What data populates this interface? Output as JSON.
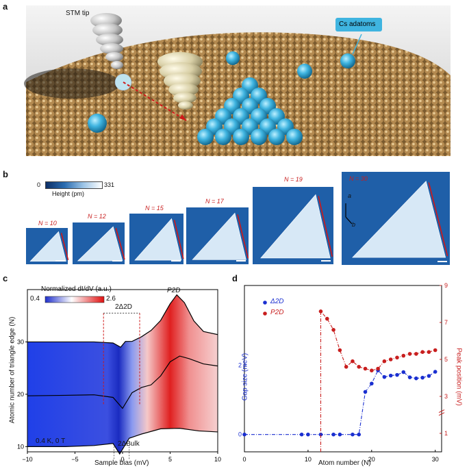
{
  "panels": {
    "a": {
      "label": "a",
      "stm_tip_label": "STM tip",
      "adatoms_label": "Cs adatoms"
    },
    "b": {
      "label": "b",
      "colorbar_min": "0",
      "colorbar_max": "331",
      "colorbar_title": "Height (pm)",
      "images": [
        {
          "n_label": "N = 10"
        },
        {
          "n_label": "N = 12"
        },
        {
          "n_label": "N = 15"
        },
        {
          "n_label": "N = 17"
        },
        {
          "n_label": "N = 19"
        },
        {
          "n_label": "N = 30"
        }
      ],
      "axis_a": "a",
      "axis_b": "b"
    },
    "c": {
      "label": "c",
      "colorbar_title": "Normalized dI/dV (a.u.)",
      "colorbar_min": "0.4",
      "colorbar_max": "2.6",
      "peak_label": "P2D",
      "gap_label": "2Δ2D",
      "bulk_label": "2ΔBulk",
      "condition": "0.4 K, 0 T",
      "xlabel": "Sample bias (mV)",
      "ylabel": "Atomic number of triangle edge (N)",
      "xticks": [
        "−10",
        "−5",
        "0",
        "5",
        "10"
      ],
      "yticks": [
        "10",
        "20",
        "30"
      ]
    },
    "d": {
      "label": "d",
      "legend_gap": "Δ2D",
      "legend_peak": "P2D",
      "xlabel": "Atom number (N)",
      "ylabel_left": "Gap size (meV)",
      "ylabel_right": "Peak position (mV)",
      "xticks": [
        "0",
        "10",
        "20",
        "30"
      ],
      "yticks_left": [
        "0",
        "2"
      ],
      "yticks_right": [
        "1",
        "3",
        "5",
        "7",
        "9"
      ]
    }
  },
  "chart_data": [
    {
      "type": "heatmap",
      "title": "",
      "xlabel": "Sample bias (mV)",
      "ylabel": "Atomic number of triangle edge (N)",
      "xlim": [
        -10,
        10
      ],
      "ylim": [
        9,
        40
      ],
      "colorbar": {
        "label": "Normalized dI/dV (a.u.)",
        "min": 0.4,
        "max": 2.6
      },
      "annotations": [
        "P2D",
        "2Δ2D",
        "2ΔBulk",
        "0.4 K, 0 T"
      ],
      "profile_curves": [
        {
          "N": 30,
          "x": [
            -10,
            -6,
            -3,
            -1,
            -0.2,
            0.3,
            1,
            2,
            3,
            4,
            5,
            5.7,
            6.5,
            7.5,
            8.5,
            10
          ],
          "y": [
            30,
            30,
            30,
            29.8,
            29.0,
            30.1,
            30.1,
            31.0,
            32.2,
            34.1,
            37.3,
            39.0,
            37.5,
            34.0,
            32.0,
            31.4
          ]
        },
        {
          "N": 20,
          "x": [
            -10,
            -6,
            -3,
            -1,
            0,
            1,
            2,
            3,
            4,
            5,
            6,
            7,
            8.5,
            10
          ],
          "y": [
            19.7,
            19.8,
            19.9,
            19.4,
            17.3,
            20.3,
            21.3,
            21.8,
            23.5,
            26.2,
            27.3,
            26.8,
            25.8,
            25.4
          ]
        },
        {
          "N": 10,
          "x": [
            -10,
            -6,
            -3,
            -1,
            -0.3,
            0.7,
            2,
            4,
            6,
            8,
            10
          ],
          "y": [
            10.0,
            10.0,
            10.2,
            10.6,
            8.6,
            11.6,
            12.4,
            13.4,
            13.5,
            13.0,
            12.8
          ]
        }
      ]
    },
    {
      "type": "scatter",
      "title": "",
      "xlabel": "Atom number (N)",
      "xlim": [
        0,
        31
      ],
      "series": [
        {
          "name": "Δ2D",
          "axis": "left",
          "ylabel": "Gap size (meV)",
          "x": [
            0,
            9,
            10,
            12,
            14,
            15,
            17,
            18,
            19,
            20,
            21,
            22,
            23,
            24,
            25,
            26,
            27,
            28,
            29,
            30
          ],
          "y": [
            0,
            0,
            0,
            0,
            0,
            0,
            0,
            0,
            1.23,
            1.47,
            1.85,
            1.66,
            1.7,
            1.72,
            1.8,
            1.65,
            1.62,
            1.64,
            1.69,
            1.81
          ]
        },
        {
          "name": "P2D",
          "axis": "right",
          "ylabel": "Peak position (mV)",
          "x": [
            12,
            13,
            14,
            15,
            16,
            17,
            18,
            19,
            20,
            21,
            22,
            23,
            24,
            25,
            26,
            27,
            28,
            29,
            30
          ],
          "y": [
            7.6,
            7.2,
            6.6,
            5.5,
            4.6,
            4.9,
            4.6,
            4.5,
            4.4,
            4.5,
            4.9,
            5.0,
            5.1,
            5.2,
            5.3,
            5.3,
            5.4,
            5.4,
            5.5
          ]
        }
      ],
      "ylim_left": [
        -0.5,
        4.3
      ],
      "ylim_right": [
        0,
        9
      ],
      "legend": "top-left"
    }
  ]
}
